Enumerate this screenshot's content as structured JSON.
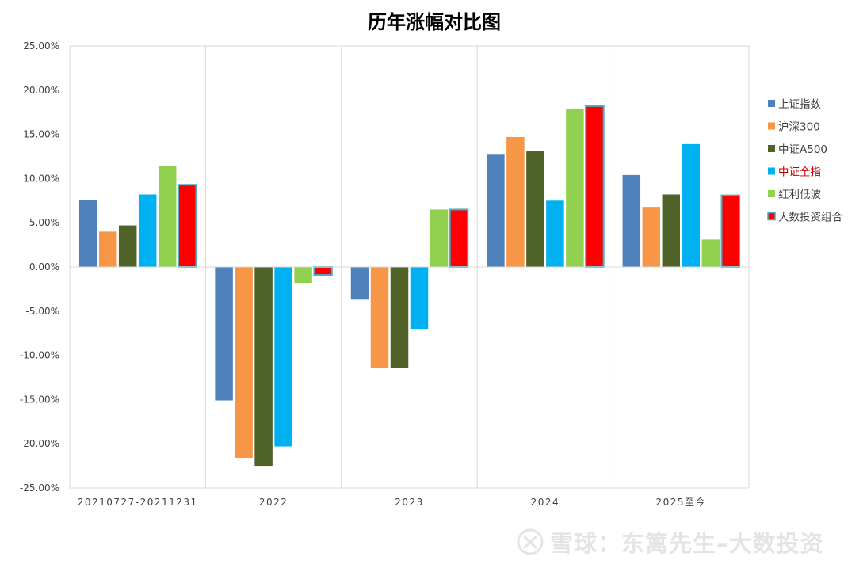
{
  "chart_data": {
    "type": "bar",
    "title": "历年涨幅对比图",
    "categories": [
      "20210727-20211231",
      "2022",
      "2023",
      "2024",
      "2025至今"
    ],
    "y_ticks": [
      "25.00%",
      "20.00%",
      "15.00%",
      "10.00%",
      "5.00%",
      "0.00%",
      "-5.00%",
      "-10.00%",
      "-15.00%",
      "-20.00%",
      "-25.00%"
    ],
    "ylim": [
      -25,
      25
    ],
    "y_unit": "%",
    "grid": "vertical separators between categories",
    "legend_position": "right",
    "series": [
      {
        "name": "上证指数",
        "color": "#4f81bd",
        "values": [
          7.6,
          -15.1,
          -3.7,
          12.7,
          10.4
        ]
      },
      {
        "name": "沪深300",
        "color": "#f79646",
        "values": [
          4.0,
          -21.6,
          -11.4,
          14.7,
          6.8
        ]
      },
      {
        "name": "中证A500",
        "color": "#4f6228",
        "values": [
          4.7,
          -22.5,
          -11.4,
          13.1,
          8.2
        ]
      },
      {
        "name": "中证全指",
        "color": "#00b0f0",
        "values": [
          8.2,
          -20.3,
          -7.0,
          7.5,
          13.9
        ]
      },
      {
        "name": "红利低波",
        "color": "#92d050",
        "values": [
          11.4,
          -1.8,
          6.5,
          17.9,
          3.1
        ]
      },
      {
        "name": "大数投资组合",
        "color": "#ff0000",
        "values": [
          9.3,
          -0.9,
          6.5,
          18.2,
          8.1
        ]
      }
    ]
  },
  "watermark": {
    "text": "雪球：东篱先生–大数投资",
    "icon": "snowball-logo-icon"
  }
}
